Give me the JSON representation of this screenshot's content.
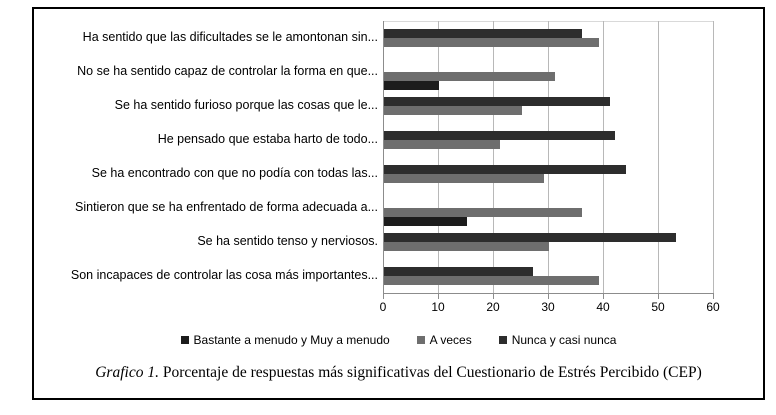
{
  "figure": {
    "caption": {
      "label": "Grafico 1.",
      "text": " Porcentaje de respuestas más significativas del Cuestionario de Estrés Percibido (CEP)"
    }
  },
  "legend": {
    "items": [
      {
        "label": "Bastante a menudo y Muy a menudo",
        "color": "#1c1c1c"
      },
      {
        "label": "A veces",
        "color": "#6e6e6e"
      },
      {
        "label": "Nunca y casi nunca",
        "color": "#2d2d2d"
      }
    ]
  },
  "chart_data": {
    "type": "bar",
    "orientation": "horizontal",
    "title": "",
    "xlabel": "",
    "ylabel": "",
    "xlim": [
      0,
      60
    ],
    "x_ticks": [
      "0",
      "10",
      "20",
      "30",
      "40",
      "50",
      "60"
    ],
    "grid": "vertical-only",
    "legend_position": "bottom",
    "categories": [
      "Ha sentido que las dificultades se le amontonan sin...",
      "No se ha sentido capaz de controlar la forma en que...",
      "Se ha sentido furioso porque las cosas que le...",
      "He pensado que estaba harto de todo...",
      "Se ha encontrado con que no podía con todas las...",
      "Sintieron que se ha enfrentado de forma adecuada a...",
      "Se ha sentido tenso y nerviosos.",
      "Son incapaces de controlar las cosa más importantes..."
    ],
    "series": [
      {
        "name": "Bastante a menudo y Muy a menudo",
        "color": "#1c1c1c",
        "values": [
          null,
          10,
          null,
          null,
          null,
          15,
          null,
          null
        ]
      },
      {
        "name": "A veces",
        "color": "#6e6e6e",
        "values": [
          39,
          31,
          25,
          21,
          29,
          36,
          30,
          39
        ]
      },
      {
        "name": "Nunca y casi nunca",
        "color": "#2d2d2d",
        "values": [
          36,
          null,
          41,
          42,
          44,
          null,
          53,
          27
        ]
      }
    ]
  },
  "colors": {
    "axis": "#8c8c8c",
    "grid": "#b8b8b8",
    "border": "#000000",
    "background": "#ffffff"
  }
}
